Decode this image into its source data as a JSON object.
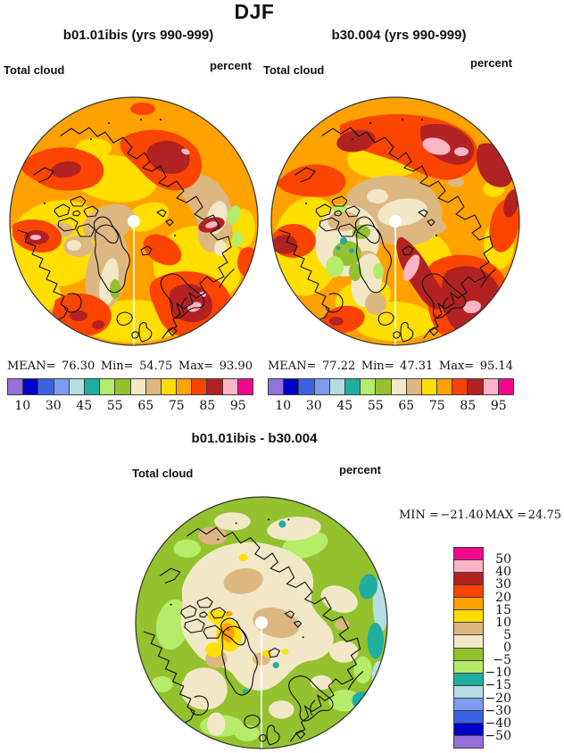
{
  "figure": {
    "title": "DJF",
    "panels": [
      {
        "title": "b01.01ibis (yrs 990-999)",
        "var_label": "Total cloud",
        "units_label": "percent",
        "stats": {
          "mean_label": "MEAN=",
          "mean": "76.30",
          "min_label": "Min=",
          "min": "54.75",
          "max_label": "Max=",
          "max": "93.90"
        }
      },
      {
        "title": "b30.004 (yrs 990-999)",
        "var_label": "Total cloud",
        "units_label": "percent",
        "stats": {
          "mean_label": "MEAN=",
          "mean": "77.22",
          "min_label": "Min=",
          "min": "47.31",
          "max_label": "Max=",
          "max": "95.14"
        }
      }
    ],
    "difference": {
      "title": "b01.01ibis - b30.004",
      "var_label": "Total cloud",
      "units_label": "percent",
      "range": {
        "min_label": "MIN =",
        "min": "−21.40",
        "max_label": "MAX =",
        "max": "24.75"
      }
    }
  },
  "palette": {
    "purple": "#9470DC",
    "navy": "#0000C8",
    "royal": "#3B62E2",
    "cornflower": "#7D9BF0",
    "pale_cyan": "#B6DEE2",
    "teal": "#1FAEA0",
    "light_green": "#B5EC6A",
    "apple_green": "#94C22E",
    "cream": "#F2E8C8",
    "tan": "#DDB782",
    "yellow": "#FFDE00",
    "orange": "#FFA200",
    "orangered": "#FB4400",
    "firebrick": "#B22222",
    "pink": "#FFB5C5",
    "magenta": "#F2078C"
  },
  "colorbar": {
    "cells_low_to_high": [
      "purple",
      "navy",
      "royal",
      "cornflower",
      "pale_cyan",
      "teal",
      "light_green",
      "apple_green",
      "cream",
      "tan",
      "yellow",
      "orange",
      "orangered",
      "firebrick",
      "pink",
      "magenta"
    ],
    "horizontal_ticks": [
      "10",
      "30",
      "45",
      "55",
      "65",
      "75",
      "85",
      "95"
    ],
    "vertical_cells_top_to_bottom": [
      "magenta",
      "pink",
      "firebrick",
      "orangered",
      "orange",
      "yellow",
      "tan",
      "cream",
      "apple_green",
      "light_green",
      "teal",
      "pale_cyan",
      "cornflower",
      "royal",
      "navy",
      "purple"
    ],
    "vertical_ticks_top_to_bottom": [
      "50",
      "40",
      "30",
      "20",
      "15",
      "10",
      "5",
      "0",
      "−5",
      "−10",
      "−15",
      "−20",
      "−30",
      "−40",
      "−50"
    ]
  },
  "chart_data": [
    {
      "type": "heatmap",
      "subtype": "filled-contour-map",
      "projection": "north-polar-stereographic",
      "season": "DJF",
      "title": "b01.01ibis (yrs 990-999)",
      "variable": "Total cloud",
      "units": "percent",
      "mean": 76.3,
      "min": 54.75,
      "max": 93.9,
      "contour_levels": [
        10,
        20,
        30,
        40,
        45,
        50,
        55,
        60,
        65,
        70,
        75,
        80,
        85,
        90,
        95
      ],
      "labeled_levels": [
        10,
        30,
        45,
        55,
        65,
        75,
        85,
        95
      ],
      "legend_position": "bottom"
    },
    {
      "type": "heatmap",
      "subtype": "filled-contour-map",
      "projection": "north-polar-stereographic",
      "season": "DJF",
      "title": "b30.004 (yrs 990-999)",
      "variable": "Total cloud",
      "units": "percent",
      "mean": 77.22,
      "min": 47.31,
      "max": 95.14,
      "contour_levels": [
        10,
        20,
        30,
        40,
        45,
        50,
        55,
        60,
        65,
        70,
        75,
        80,
        85,
        90,
        95
      ],
      "labeled_levels": [
        10,
        30,
        45,
        55,
        65,
        75,
        85,
        95
      ],
      "legend_position": "bottom"
    },
    {
      "type": "heatmap",
      "subtype": "filled-contour-difference-map",
      "projection": "north-polar-stereographic",
      "season": "DJF",
      "title": "b01.01ibis - b30.004",
      "variable": "Total cloud",
      "units": "percent",
      "min": -21.4,
      "max": 24.75,
      "contour_levels": [
        -50,
        -40,
        -30,
        -20,
        -15,
        -10,
        -5,
        0,
        5,
        10,
        15,
        20,
        30,
        40,
        50
      ],
      "legend_position": "right"
    }
  ]
}
